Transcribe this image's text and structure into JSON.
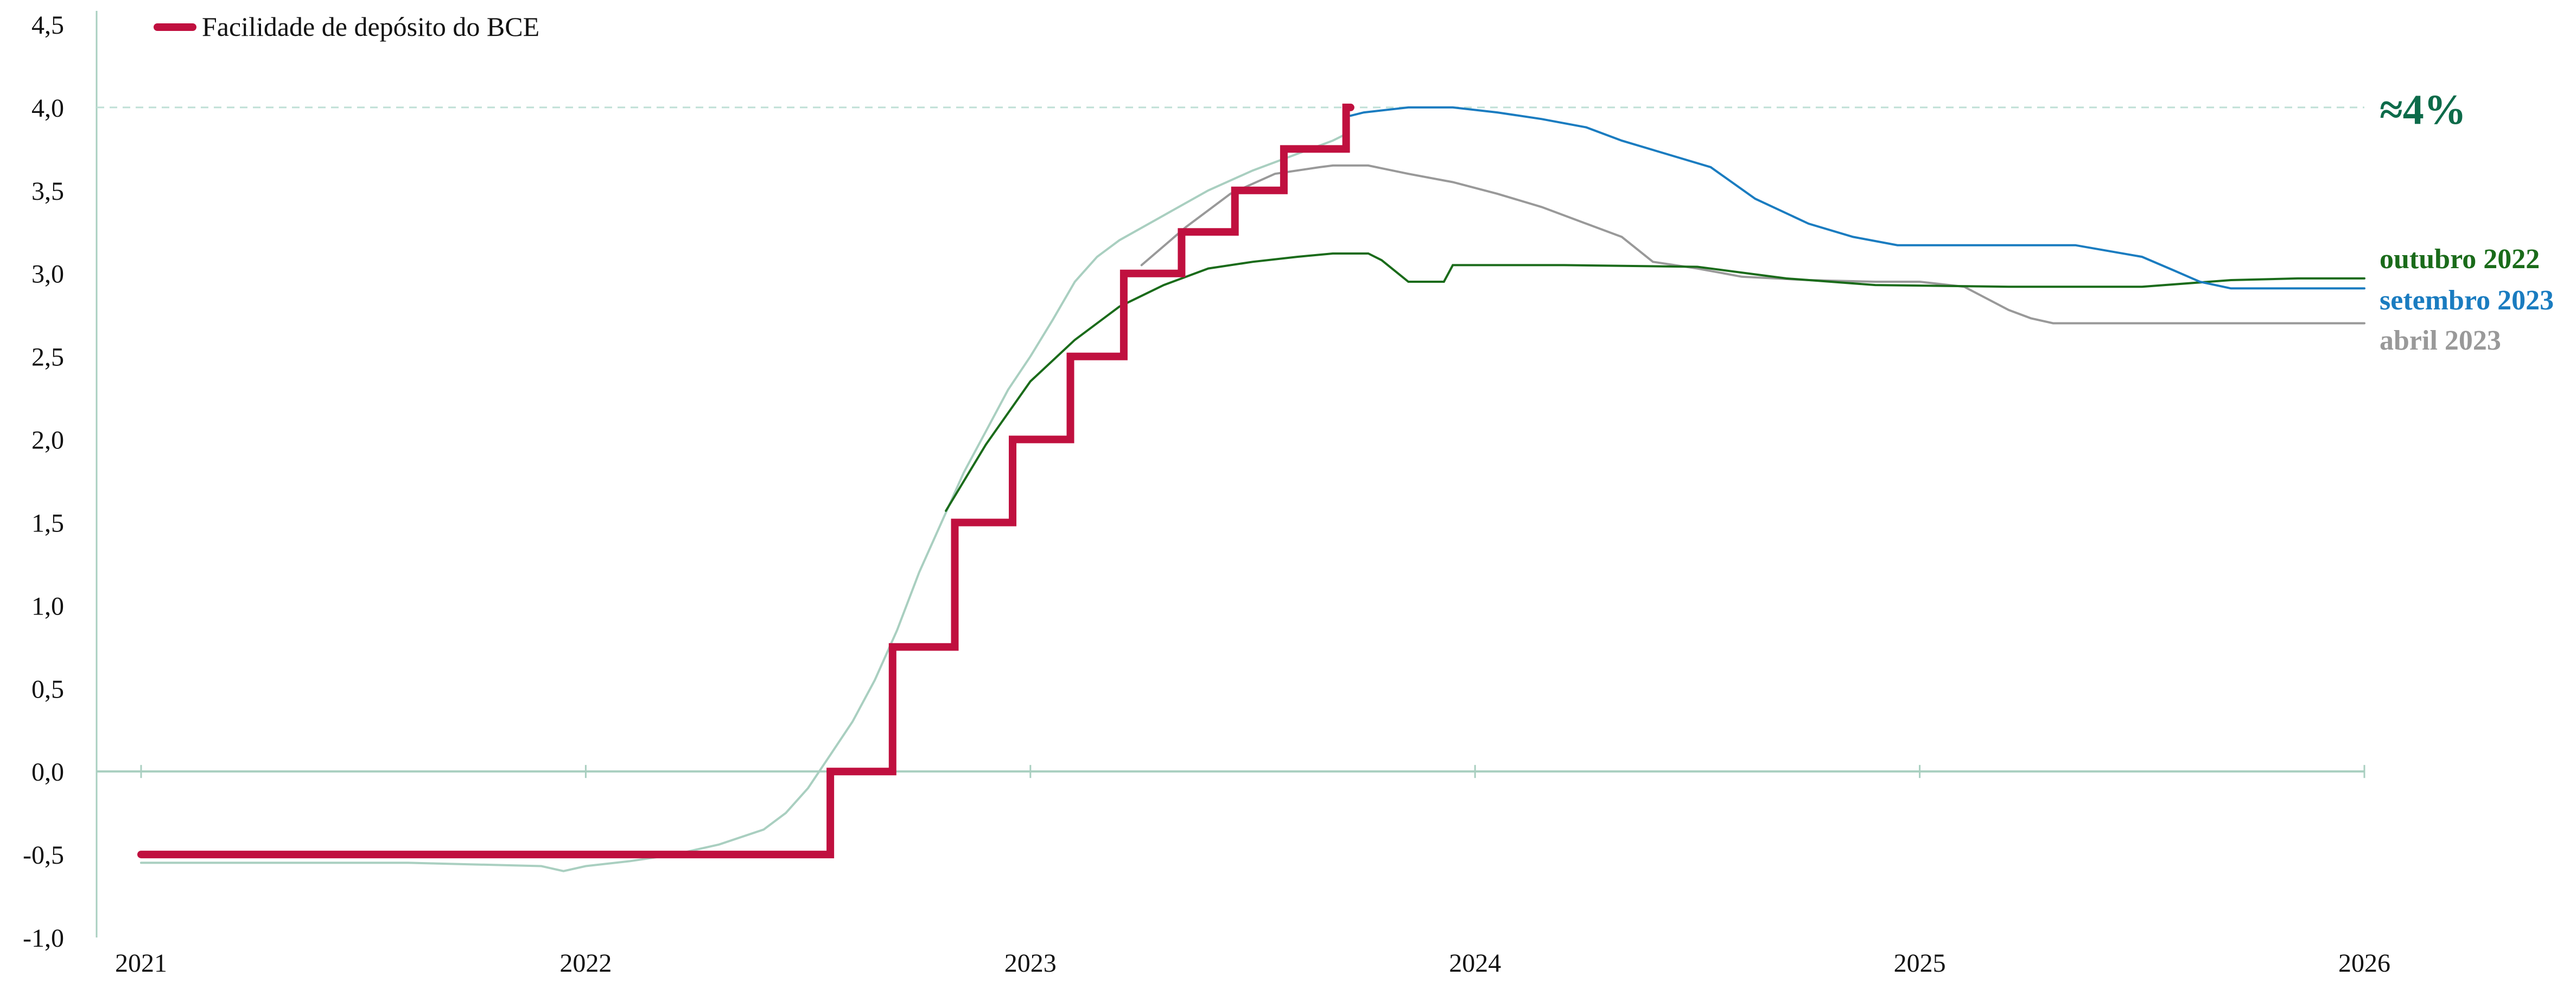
{
  "chart_data": {
    "type": "line",
    "title": "",
    "xlabel": "",
    "ylabel": "",
    "x_ticks": [
      "2021",
      "2022",
      "2023",
      "2024",
      "2025",
      "2026"
    ],
    "xlim": [
      2021,
      2026
    ],
    "y_ticks": [
      "4,5",
      "4,0",
      "3,5",
      "3,0",
      "2,5",
      "2,0",
      "1,5",
      "1,0",
      "0,5",
      "0,0",
      "-0,5",
      "-1,0"
    ],
    "ylim": [
      -1.0,
      4.5
    ],
    "grid": false,
    "legend": {
      "placement": "top-left",
      "label": "Facilidade de depósito do BCE"
    },
    "colors": {
      "deposit": "#c0103f",
      "market": "#a9cfc0",
      "out2022": "#1a6b1a",
      "sep2023": "#1a7cc0",
      "apr2023": "#999999",
      "annotation": "#0d6b4a",
      "axis": "#a9cfc0",
      "refline": "#bfe0d6"
    },
    "annotation": {
      "text": "≈4%",
      "y": 4.0
    },
    "series": [
      {
        "name": "Facilidade de depósito do BCE",
        "style": "step",
        "points": [
          [
            2021.0,
            -0.5
          ],
          [
            2022.55,
            -0.5
          ],
          [
            2022.55,
            0.0
          ],
          [
            2022.69,
            0.0
          ],
          [
            2022.69,
            0.75
          ],
          [
            2022.83,
            0.75
          ],
          [
            2022.83,
            1.5
          ],
          [
            2022.96,
            1.5
          ],
          [
            2022.96,
            2.0
          ],
          [
            2023.09,
            2.0
          ],
          [
            2023.09,
            2.5
          ],
          [
            2023.21,
            2.5
          ],
          [
            2023.21,
            3.0
          ],
          [
            2023.34,
            3.0
          ],
          [
            2023.34,
            3.25
          ],
          [
            2023.46,
            3.25
          ],
          [
            2023.46,
            3.5
          ],
          [
            2023.57,
            3.5
          ],
          [
            2023.57,
            3.75
          ],
          [
            2023.71,
            3.75
          ],
          [
            2023.71,
            4.0
          ],
          [
            2023.72,
            4.0
          ]
        ]
      },
      {
        "name": "",
        "style": "market",
        "points": [
          [
            2021.0,
            -0.55
          ],
          [
            2021.3,
            -0.55
          ],
          [
            2021.6,
            -0.55
          ],
          [
            2021.9,
            -0.57
          ],
          [
            2021.95,
            -0.6
          ],
          [
            2022.0,
            -0.57
          ],
          [
            2022.1,
            -0.54
          ],
          [
            2022.2,
            -0.5
          ],
          [
            2022.3,
            -0.44
          ],
          [
            2022.4,
            -0.35
          ],
          [
            2022.45,
            -0.25
          ],
          [
            2022.5,
            -0.1
          ],
          [
            2022.55,
            0.1
          ],
          [
            2022.6,
            0.3
          ],
          [
            2022.65,
            0.55
          ],
          [
            2022.7,
            0.85
          ],
          [
            2022.75,
            1.2
          ],
          [
            2022.8,
            1.5
          ],
          [
            2022.85,
            1.8
          ],
          [
            2022.9,
            2.05
          ],
          [
            2022.95,
            2.3
          ],
          [
            2023.0,
            2.5
          ],
          [
            2023.05,
            2.72
          ],
          [
            2023.1,
            2.95
          ],
          [
            2023.15,
            3.1
          ],
          [
            2023.2,
            3.2
          ],
          [
            2023.3,
            3.35
          ],
          [
            2023.4,
            3.5
          ],
          [
            2023.5,
            3.62
          ],
          [
            2023.6,
            3.72
          ],
          [
            2023.68,
            3.8
          ],
          [
            2023.71,
            3.84
          ]
        ]
      },
      {
        "name": "outubro 2022",
        "style": "line",
        "points": [
          [
            2022.81,
            1.57
          ],
          [
            2022.9,
            1.97
          ],
          [
            2023.0,
            2.35
          ],
          [
            2023.1,
            2.6
          ],
          [
            2023.2,
            2.8
          ],
          [
            2023.3,
            2.93
          ],
          [
            2023.4,
            3.03
          ],
          [
            2023.5,
            3.07
          ],
          [
            2023.6,
            3.1
          ],
          [
            2023.68,
            3.12
          ],
          [
            2023.74,
            3.12
          ],
          [
            2023.76,
            3.12
          ],
          [
            2023.79,
            3.08
          ],
          [
            2023.85,
            2.95
          ],
          [
            2023.93,
            2.95
          ],
          [
            2023.95,
            3.05
          ],
          [
            2024.2,
            3.05
          ],
          [
            2024.5,
            3.04
          ],
          [
            2024.7,
            2.97
          ],
          [
            2024.9,
            2.93
          ],
          [
            2025.2,
            2.92
          ],
          [
            2025.5,
            2.92
          ],
          [
            2025.7,
            2.96
          ],
          [
            2025.85,
            2.97
          ],
          [
            2026.0,
            2.97
          ]
        ]
      },
      {
        "name": "setembro 2023",
        "style": "line",
        "points": [
          [
            2023.72,
            3.95
          ],
          [
            2023.75,
            3.97
          ],
          [
            2023.85,
            4.0
          ],
          [
            2023.95,
            4.0
          ],
          [
            2024.05,
            3.97
          ],
          [
            2024.15,
            3.93
          ],
          [
            2024.25,
            3.88
          ],
          [
            2024.33,
            3.8
          ],
          [
            2024.43,
            3.72
          ],
          [
            2024.53,
            3.64
          ],
          [
            2024.63,
            3.45
          ],
          [
            2024.75,
            3.3
          ],
          [
            2024.85,
            3.22
          ],
          [
            2024.95,
            3.17
          ],
          [
            2025.2,
            3.17
          ],
          [
            2025.35,
            3.17
          ],
          [
            2025.5,
            3.1
          ],
          [
            2025.57,
            3.02
          ],
          [
            2025.63,
            2.95
          ],
          [
            2025.7,
            2.91
          ],
          [
            2026.0,
            2.91
          ]
        ]
      },
      {
        "name": "abril 2023",
        "style": "line",
        "points": [
          [
            2023.25,
            3.05
          ],
          [
            2023.35,
            3.28
          ],
          [
            2023.45,
            3.48
          ],
          [
            2023.55,
            3.6
          ],
          [
            2023.65,
            3.64
          ],
          [
            2023.68,
            3.65
          ],
          [
            2023.76,
            3.65
          ],
          [
            2023.85,
            3.6
          ],
          [
            2023.95,
            3.55
          ],
          [
            2024.05,
            3.48
          ],
          [
            2024.15,
            3.4
          ],
          [
            2024.25,
            3.3
          ],
          [
            2024.33,
            3.22
          ],
          [
            2024.4,
            3.07
          ],
          [
            2024.5,
            3.03
          ],
          [
            2024.6,
            2.98
          ],
          [
            2024.75,
            2.96
          ],
          [
            2024.9,
            2.95
          ],
          [
            2025.0,
            2.95
          ],
          [
            2025.1,
            2.92
          ],
          [
            2025.15,
            2.85
          ],
          [
            2025.2,
            2.78
          ],
          [
            2025.25,
            2.73
          ],
          [
            2025.3,
            2.7
          ],
          [
            2026.0,
            2.7
          ]
        ]
      }
    ]
  }
}
